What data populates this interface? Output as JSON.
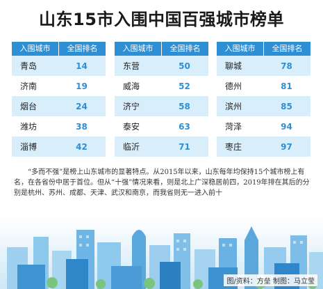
{
  "title": "山东15市入围中国百强城市榜单",
  "header": {
    "city_label": "入围城市",
    "rank_label": "全国排名"
  },
  "tables": [
    {
      "rows": [
        {
          "city": "青岛",
          "rank": "14"
        },
        {
          "city": "济南",
          "rank": "19"
        },
        {
          "city": "烟台",
          "rank": "24"
        },
        {
          "city": "潍坊",
          "rank": "38"
        },
        {
          "city": "淄博",
          "rank": "42"
        }
      ]
    },
    {
      "rows": [
        {
          "city": "东营",
          "rank": "50"
        },
        {
          "city": "威海",
          "rank": "52"
        },
        {
          "city": "济宁",
          "rank": "58"
        },
        {
          "city": "泰安",
          "rank": "63"
        },
        {
          "city": "临沂",
          "rank": "71"
        }
      ]
    },
    {
      "rows": [
        {
          "city": "聊城",
          "rank": "78"
        },
        {
          "city": "德州",
          "rank": "81"
        },
        {
          "city": "滨州",
          "rank": "85"
        },
        {
          "city": "菏泽",
          "rank": "94"
        },
        {
          "city": "枣庄",
          "rank": "97"
        }
      ]
    }
  ],
  "paragraph": "“多而不强”是榜上山东城市的显著特点。从2015年以来，山东每年均保持15个城市榜上有名，在各省份中居于首位。但从“十强”情况来看，则是北上广深稳居前四，2019年排在其后的分别是杭州、苏州、成都、天津、武汉和南京，而我省则无一进入前十",
  "credit": "图/资料：方垒 制图：马立莹",
  "colors": {
    "accent": "#2f8fd4",
    "row_alt": "#d9eefb"
  }
}
